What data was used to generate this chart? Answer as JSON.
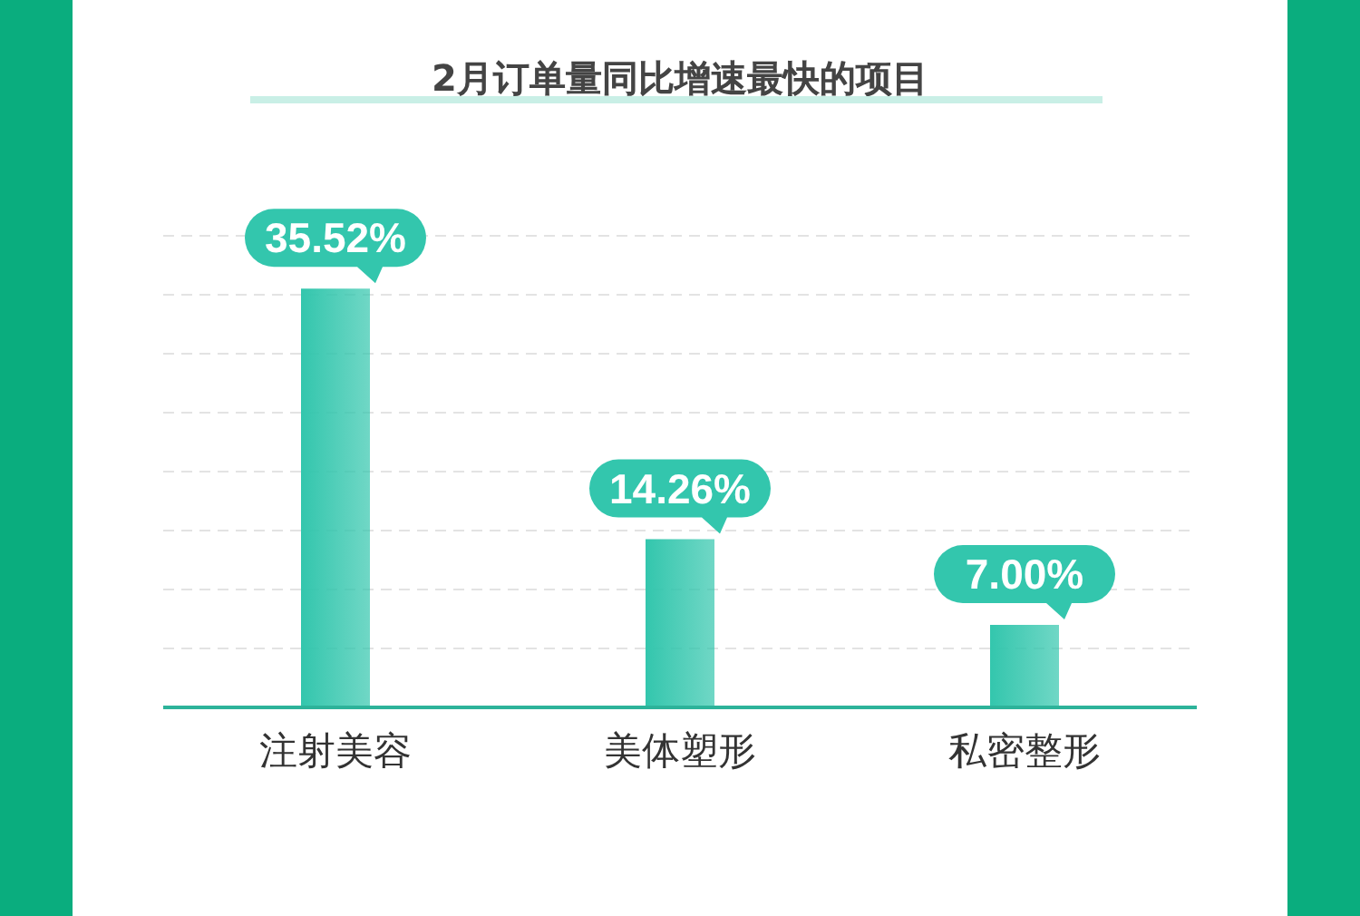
{
  "chart_data": {
    "type": "bar",
    "title": "2月订单量同比增速最快的项目",
    "categories": [
      "注射美容",
      "美体塑形",
      "私密整形"
    ],
    "values": [
      35.52,
      14.26,
      7.0
    ],
    "value_labels": [
      "35.52%",
      "14.26%",
      "7.00%"
    ],
    "color": "#33c6ad",
    "ylim": [
      0,
      40
    ],
    "yticks": [
      {
        "value": 0,
        "label": null
      },
      {
        "value": 5,
        "label": null
      },
      {
        "value": 10,
        "label": null
      },
      {
        "value": 15,
        "label": null
      },
      {
        "value": 20,
        "label": null
      },
      {
        "value": 25,
        "label": null
      },
      {
        "value": 30,
        "label": null
      },
      {
        "value": 35,
        "label": null
      },
      {
        "value": 40,
        "label": null
      }
    ],
    "tick_labels": "x",
    "grid": "y"
  }
}
